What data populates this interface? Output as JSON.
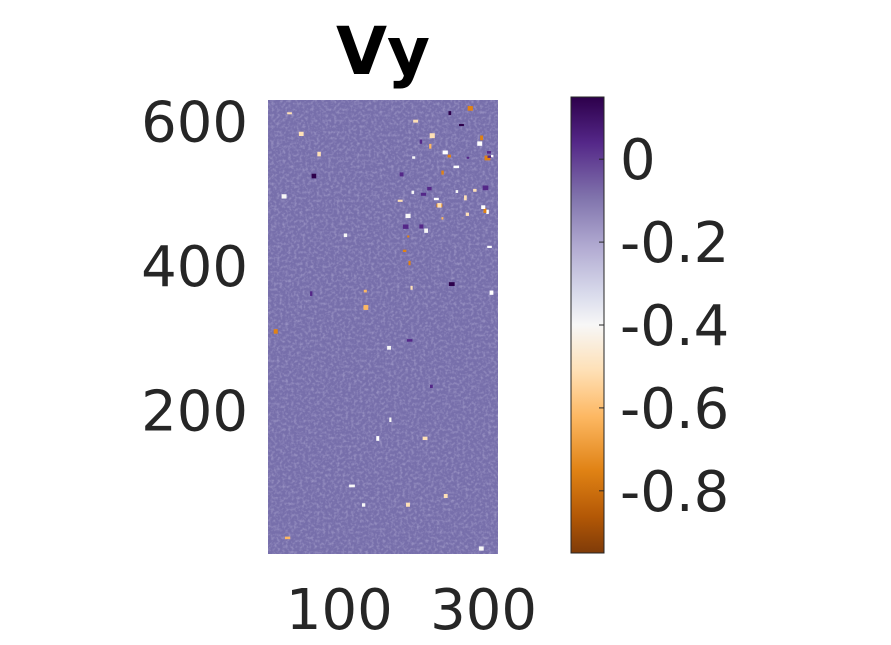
{
  "chart_data": {
    "type": "heatmap",
    "title": "Vy",
    "xlabel": "",
    "ylabel": "",
    "x_ticks": [
      100,
      300
    ],
    "y_ticks": [
      200,
      400,
      600
    ],
    "xlim": [
      1,
      320
    ],
    "ylim": [
      1,
      630
    ],
    "field_level": -0.06,
    "colorbar": {
      "colormap": "PuOr",
      "clim": [
        -0.95,
        0.15
      ],
      "ticks": [
        0,
        -0.2,
        -0.4,
        -0.6,
        -0.8
      ],
      "tick_labels": [
        "0",
        "-0.2",
        "-0.4",
        "-0.6",
        "-0.8"
      ]
    },
    "grid": false
  }
}
